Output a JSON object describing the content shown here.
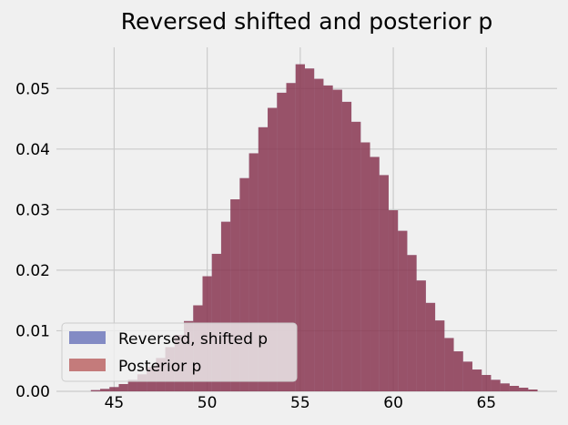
{
  "chart_data": {
    "type": "bar",
    "title": "Reversed shifted and posterior p",
    "xlabel": "",
    "ylabel": "",
    "xlim": [
      41.9,
      68.8
    ],
    "ylim": [
      0,
      0.0568
    ],
    "xticks": [
      45,
      50,
      55,
      60,
      65
    ],
    "yticks": [
      0.0,
      0.01,
      0.02,
      0.03,
      0.04,
      0.05
    ],
    "xtick_labels": [
      "45",
      "50",
      "55",
      "60",
      "65"
    ],
    "ytick_labels": [
      "0.00",
      "0.01",
      "0.02",
      "0.03",
      "0.04",
      "0.05"
    ],
    "grid": true,
    "legend_position": "lower-left",
    "bar_width": 0.5,
    "x": [
      44,
      44.5,
      45,
      45.5,
      46,
      46.5,
      47,
      47.5,
      48,
      48.5,
      49,
      49.5,
      50,
      50.5,
      51,
      51.5,
      52,
      52.5,
      53,
      53.5,
      54,
      54.5,
      55,
      55.5,
      56,
      56.5,
      57,
      57.5,
      58,
      58.5,
      59,
      59.5,
      60,
      60.5,
      61,
      61.5,
      62,
      62.5,
      63,
      63.5,
      64,
      64.5,
      65,
      65.5,
      66,
      66.5,
      67,
      67.5
    ],
    "series": [
      {
        "name": "Reversed, shifted p",
        "color": "#3b47a6",
        "values": [
          0.0002,
          0.0004,
          0.0007,
          0.0012,
          0.0019,
          0.0028,
          0.004,
          0.0055,
          0.0073,
          0.0093,
          0.0116,
          0.0142,
          0.019,
          0.0227,
          0.028,
          0.0317,
          0.0352,
          0.0393,
          0.0436,
          0.0468,
          0.0493,
          0.0509,
          0.054,
          0.0533,
          0.0516,
          0.0505,
          0.0498,
          0.0478,
          0.0445,
          0.0411,
          0.0387,
          0.0357,
          0.0299,
          0.0265,
          0.0225,
          0.0183,
          0.0146,
          0.0117,
          0.0088,
          0.0066,
          0.0049,
          0.0036,
          0.0027,
          0.0019,
          0.0013,
          0.0009,
          0.0006,
          0.0003
        ]
      },
      {
        "name": "Posterior p",
        "color": "#a62d2d",
        "values": [
          0.0002,
          0.0004,
          0.0007,
          0.0012,
          0.0019,
          0.0028,
          0.004,
          0.0055,
          0.0073,
          0.0093,
          0.0116,
          0.0142,
          0.019,
          0.0227,
          0.028,
          0.0317,
          0.0352,
          0.0393,
          0.0436,
          0.0468,
          0.0493,
          0.0509,
          0.054,
          0.0533,
          0.0516,
          0.0505,
          0.0498,
          0.0478,
          0.0445,
          0.0411,
          0.0387,
          0.0357,
          0.0299,
          0.0265,
          0.0225,
          0.0183,
          0.0146,
          0.0117,
          0.0088,
          0.0066,
          0.0049,
          0.0036,
          0.0027,
          0.0019,
          0.0013,
          0.0009,
          0.0006,
          0.0003
        ]
      }
    ]
  }
}
